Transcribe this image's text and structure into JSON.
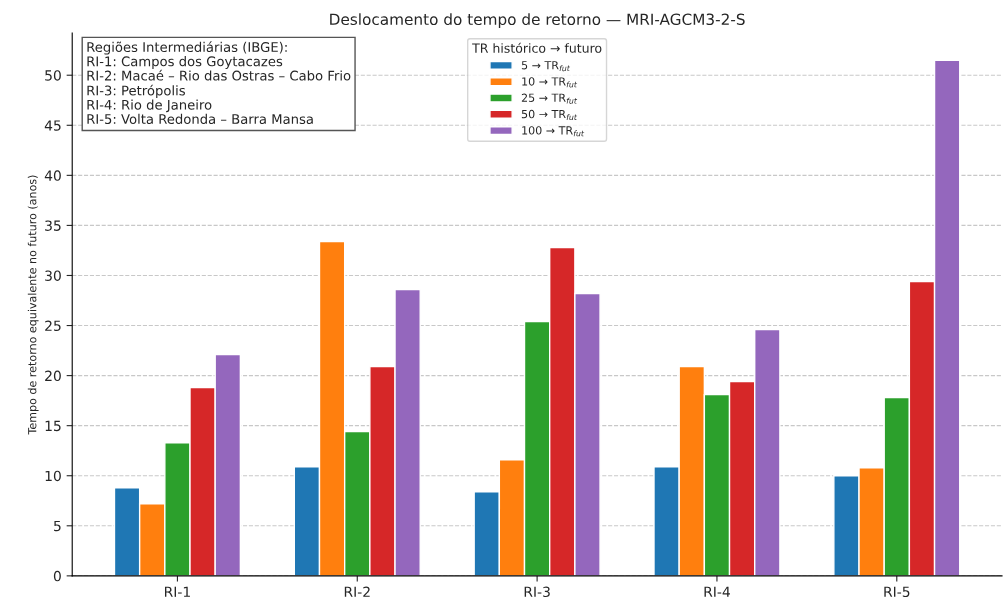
{
  "chart_data": {
    "type": "bar",
    "title": "Deslocamento do tempo de retorno — MRI-AGCM3-2-S",
    "ylabel": "Tempo de retorno equivalente no futuro (anos)",
    "legend_title": "TR histórico → futuro",
    "categories": [
      "RI-1",
      "RI-2",
      "RI-3",
      "RI-4",
      "RI-5"
    ],
    "series": [
      {
        "name": "5 → TR$_{fut}$",
        "color": "#1f77b4",
        "values": [
          8.8,
          10.9,
          8.4,
          10.9,
          10.0
        ]
      },
      {
        "name": "10 → TR$_{fut}$",
        "color": "#ff7f0e",
        "values": [
          7.2,
          33.4,
          11.6,
          20.9,
          10.8
        ]
      },
      {
        "name": "25 → TR$_{fut}$",
        "color": "#2ca02c",
        "values": [
          13.3,
          14.4,
          25.4,
          18.1,
          17.8
        ]
      },
      {
        "name": "50 → TR$_{fut}$",
        "color": "#d62728",
        "values": [
          18.8,
          20.9,
          32.8,
          19.4,
          29.4
        ]
      },
      {
        "name": "100 → TR$_{fut}$",
        "color": "#9467bd",
        "values": [
          22.1,
          28.6,
          28.2,
          24.6,
          51.5
        ]
      }
    ],
    "annotations": [
      "Regiões Intermediárias (IBGE):\nRI-1: Campos dos Goytacazes\nRI-2: Macaé – Rio das Ostras – Cabo Frio\nRI-3: Petrópolis\nRI-4: Rio de Janeiro\nRI-5: Volta Redonda – Barra Mansa"
    ],
    "ylim": [
      0,
      54.2
    ],
    "yticks": [
      0,
      5,
      10,
      15,
      20,
      25,
      30,
      35,
      40,
      45,
      50
    ],
    "grid": "y",
    "legend": "top"
  }
}
